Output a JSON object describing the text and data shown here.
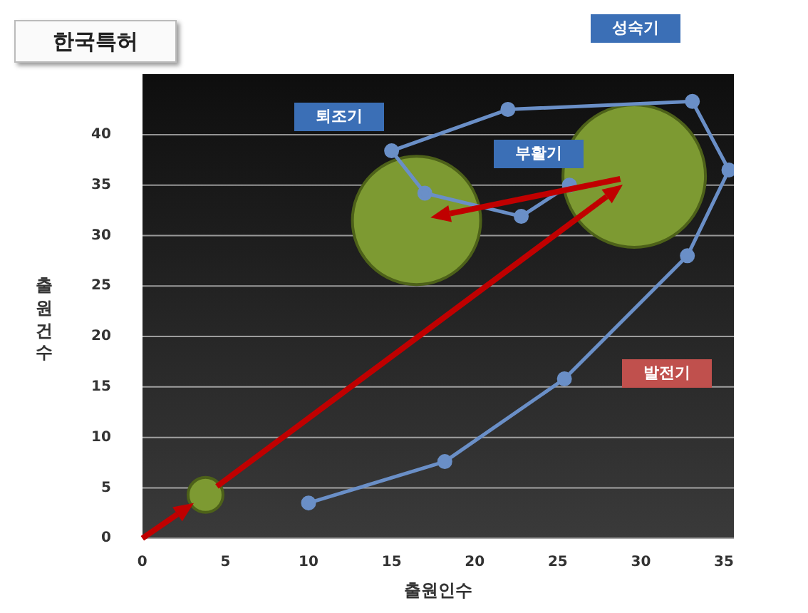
{
  "chart_data": {
    "type": "line",
    "title": "한국특허",
    "xlabel": "출원인수",
    "ylabel": "출원건수",
    "xlim": [
      0,
      35.6
    ],
    "xticks": [
      0,
      5,
      10,
      15,
      20,
      25,
      30,
      35
    ],
    "ylim": [
      0,
      46
    ],
    "yticks": [
      0,
      5,
      10,
      15,
      20,
      25,
      30,
      35,
      40
    ],
    "grid": "y",
    "marker": "circle",
    "series": [
      {
        "type": "line",
        "color": "#6a8fc7",
        "x": [
          10,
          18.2,
          25.4,
          32.8,
          35.3,
          33.1,
          22,
          15,
          17,
          22.8,
          25.7
        ],
        "values": [
          3.5,
          7.6,
          15.8,
          28,
          36.5,
          43.3,
          42.5,
          38.4,
          34.2,
          31.9,
          35
        ]
      },
      {
        "type": "bubble",
        "color": "#7d9a32",
        "x": [
          3.8,
          16.5,
          29.6
        ],
        "values": [
          4.3,
          31.5,
          35.9
        ],
        "sizes": [
          0.06,
          0.81,
          1
        ]
      }
    ],
    "annotations": [
      "성숙기",
      "퇴조기",
      "부활기",
      "발전기"
    ]
  }
}
